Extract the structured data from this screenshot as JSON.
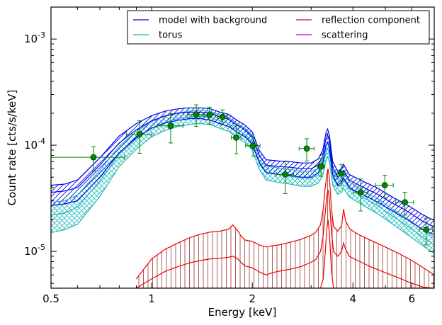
{
  "chart_data": {
    "type": "line",
    "xlabel": "Energy [keV]",
    "ylabel": "Count rate [cts/s/keV]",
    "xscale": "log",
    "yscale": "log",
    "xlim": [
      0.5,
      7.0
    ],
    "ylim": [
      4.5e-06,
      0.002
    ],
    "x_ticks": [
      {
        "value": 0.5,
        "label": "0.5"
      },
      {
        "value": 1,
        "label": "1"
      },
      {
        "value": 2,
        "label": "2"
      },
      {
        "value": 4,
        "label": "4"
      },
      {
        "value": 6,
        "label": "6"
      }
    ],
    "y_ticks": [
      {
        "value": 1e-05,
        "mant": "10",
        "exp": "-5"
      },
      {
        "value": 0.0001,
        "mant": "10",
        "exp": "-4"
      },
      {
        "value": 0.001,
        "mant": "10",
        "exp": "-3"
      }
    ],
    "legend_position": "top-right",
    "grid": false,
    "series": [
      {
        "name": "model with background",
        "color": "#0000ee",
        "hatch": "diagonal",
        "x": [
          0.5,
          0.55,
          0.6,
          0.7,
          0.8,
          0.9,
          1.0,
          1.1,
          1.2,
          1.3,
          1.4,
          1.5,
          1.6,
          1.7,
          1.8,
          1.9,
          2.0,
          2.1,
          2.2,
          2.4,
          2.6,
          2.8,
          3.0,
          3.15,
          3.25,
          3.32,
          3.36,
          3.4,
          3.48,
          3.6,
          3.7,
          3.75,
          3.8,
          3.9,
          4.0,
          4.3,
          4.7,
          5.2,
          5.8,
          6.5,
          7.0
        ],
        "y": [
          3.6e-05,
          3.7e-05,
          4e-05,
          6.5e-05,
          0.000105,
          0.00014,
          0.00017,
          0.00019,
          0.0002,
          0.000205,
          0.000205,
          0.0002,
          0.000185,
          0.000175,
          0.000155,
          0.00014,
          0.00012,
          8e-05,
          6.5e-05,
          6.3e-05,
          6.2e-05,
          6e-05,
          6e-05,
          6.5e-05,
          8e-05,
          0.000115,
          0.000125,
          0.00011,
          6.2e-05,
          5e-05,
          5.3e-05,
          5.8e-05,
          5.4e-05,
          4.7e-05,
          4.5e-05,
          4e-05,
          3.5e-05,
          2.9e-05,
          2.4e-05,
          1.9e-05,
          1.7e-05
        ],
        "y_low": [
          2.7e-05,
          2.8e-05,
          3e-05,
          5e-05,
          8.5e-05,
          0.000118,
          0.000145,
          0.000162,
          0.000172,
          0.000178,
          0.000178,
          0.000172,
          0.00016,
          0.00015,
          0.000133,
          0.00012,
          0.000102,
          6.8e-05,
          5.5e-05,
          5.3e-05,
          5.2e-05,
          5e-05,
          5e-05,
          5.5e-05,
          6.8e-05,
          9.8e-05,
          0.000107,
          9.4e-05,
          5.3e-05,
          4.2e-05,
          4.5e-05,
          4.9e-05,
          4.6e-05,
          4e-05,
          3.8e-05,
          3.4e-05,
          2.95e-05,
          2.45e-05,
          2e-05,
          1.6e-05,
          1.43e-05
        ],
        "y_high": [
          4.2e-05,
          4.3e-05,
          4.7e-05,
          7.6e-05,
          0.000122,
          0.00016,
          0.00019,
          0.00021,
          0.00022,
          0.000225,
          0.000225,
          0.00022,
          0.000205,
          0.000195,
          0.000172,
          0.000155,
          0.000133,
          8.9e-05,
          7.3e-05,
          7.1e-05,
          7e-05,
          6.8e-05,
          6.8e-05,
          7.4e-05,
          9e-05,
          0.00013,
          0.000142,
          0.000125,
          7e-05,
          5.7e-05,
          6e-05,
          6.6e-05,
          6.1e-05,
          5.3e-05,
          5.1e-05,
          4.55e-05,
          4e-05,
          3.3e-05,
          2.75e-05,
          2.2e-05,
          1.95e-05
        ]
      },
      {
        "name": "torus",
        "color": "#22bbbb",
        "hatch": "cross",
        "x": [
          0.5,
          0.55,
          0.6,
          0.7,
          0.8,
          0.9,
          1.0,
          1.1,
          1.2,
          1.3,
          1.4,
          1.5,
          1.6,
          1.7,
          1.8,
          1.9,
          2.0,
          2.1,
          2.2,
          2.4,
          2.6,
          2.8,
          3.0,
          3.15,
          3.25,
          3.32,
          3.36,
          3.4,
          3.48,
          3.6,
          3.7,
          3.75,
          3.8,
          3.9,
          4.0,
          4.3,
          4.7,
          5.2,
          5.8,
          6.5,
          7.0
        ],
        "y": [
          2.2e-05,
          2.3e-05,
          2.6e-05,
          4.6e-05,
          8.2e-05,
          0.000115,
          0.000145,
          0.000165,
          0.000178,
          0.000185,
          0.000187,
          0.000183,
          0.00017,
          0.00016,
          0.00014,
          0.000127,
          0.000108,
          7e-05,
          5.6e-05,
          5.3e-05,
          5.1e-05,
          4.9e-05,
          4.9e-05,
          5.2e-05,
          6.2e-05,
          8.5e-05,
          9.3e-05,
          8.4e-05,
          5e-05,
          4.1e-05,
          4.3e-05,
          4.7e-05,
          4.4e-05,
          3.9e-05,
          3.7e-05,
          3.2e-05,
          2.75e-05,
          2.2e-05,
          1.75e-05,
          1.35e-05,
          1.15e-05
        ],
        "y_low": [
          1.5e-05,
          1.6e-05,
          1.8e-05,
          3.3e-05,
          6.3e-05,
          9.2e-05,
          0.00012,
          0.000138,
          0.00015,
          0.000157,
          0.00016,
          0.000156,
          0.000144,
          0.000135,
          0.000118,
          0.000106,
          9e-05,
          5.9e-05,
          4.7e-05,
          4.45e-05,
          4.3e-05,
          4.1e-05,
          4.1e-05,
          4.4e-05,
          5.2e-05,
          7.1e-05,
          7.8e-05,
          7e-05,
          4.2e-05,
          3.45e-05,
          3.6e-05,
          3.95e-05,
          3.7e-05,
          3.25e-05,
          3.1e-05,
          2.7e-05,
          2.3e-05,
          1.85e-05,
          1.45e-05,
          1.12e-05,
          9.5e-06
        ],
        "y_high": [
          2.9e-05,
          3e-05,
          3.4e-05,
          5.8e-05,
          9.8e-05,
          0.000135,
          0.000167,
          0.000188,
          0.000202,
          0.00021,
          0.000212,
          0.000208,
          0.000193,
          0.000182,
          0.00016,
          0.000145,
          0.000123,
          8e-05,
          6.4e-05,
          6.1e-05,
          5.9e-05,
          5.7e-05,
          5.7e-05,
          6e-05,
          7.2e-05,
          9.8e-05,
          0.000107,
          9.7e-05,
          5.8e-05,
          4.75e-05,
          5e-05,
          5.45e-05,
          5.1e-05,
          4.5e-05,
          4.3e-05,
          3.7e-05,
          3.2e-05,
          2.55e-05,
          2.05e-05,
          1.58e-05,
          1.35e-05
        ]
      },
      {
        "name": "reflection component",
        "color": "#ee0000",
        "hatch": "vertical",
        "x": [
          0.9,
          1.0,
          1.1,
          1.2,
          1.3,
          1.4,
          1.5,
          1.6,
          1.7,
          1.75,
          1.8,
          1.85,
          1.9,
          2.0,
          2.1,
          2.2,
          2.3,
          2.4,
          2.6,
          2.8,
          3.0,
          3.1,
          3.2,
          3.26,
          3.3,
          3.34,
          3.37,
          3.4,
          3.45,
          3.5,
          3.6,
          3.7,
          3.75,
          3.8,
          3.9,
          4.0,
          4.2,
          4.5,
          5.0,
          5.5,
          6.0,
          6.5,
          7.0
        ],
        "y": [
          4.5e-06,
          5.5e-06,
          6.5e-06,
          7.2e-06,
          7.8e-06,
          8.2e-06,
          8.5e-06,
          8.6e-06,
          8.8e-06,
          9e-06,
          8.6e-06,
          7.9e-06,
          7.3e-06,
          7e-06,
          6.4e-06,
          6e-06,
          6.3e-06,
          6.5e-06,
          6.8e-06,
          7.2e-06,
          7.9e-06,
          8.4e-06,
          1e-05,
          1.4e-05,
          2.2e-05,
          3.3e-05,
          3.8e-05,
          3.1e-05,
          1.5e-05,
          1e-05,
          9e-06,
          1e-05,
          1.2e-05,
          1.05e-05,
          9e-06,
          8.6e-06,
          8e-06,
          7.2e-06,
          6.3e-06,
          5.6e-06,
          5e-06,
          4.6e-06,
          4.5e-06
        ],
        "y_low": [
          4.5e-06,
          4.5e-06,
          4.5e-06,
          4.5e-06,
          4.5e-06,
          4.5e-06,
          4.5e-06,
          4.5e-06,
          4.5e-06,
          4.5e-06,
          4.5e-06,
          4.5e-06,
          4.5e-06,
          4.5e-06,
          4.5e-06,
          4.5e-06,
          4.5e-06,
          4.5e-06,
          4.5e-06,
          4.5e-06,
          4.5e-06,
          4.5e-06,
          4.5e-06,
          5.5e-06,
          9e-06,
          1.6e-05,
          2e-05,
          1.5e-05,
          6.5e-06,
          4.5e-06,
          4.5e-06,
          4.5e-06,
          4.5e-06,
          4.5e-06,
          4.5e-06,
          4.5e-06,
          4.5e-06,
          4.5e-06,
          4.5e-06,
          4.5e-06,
          4.5e-06,
          4.5e-06,
          4.5e-06
        ],
        "y_high": [
          5.5e-06,
          8.5e-06,
          1.05e-05,
          1.2e-05,
          1.35e-05,
          1.45e-05,
          1.52e-05,
          1.55e-05,
          1.62e-05,
          1.78e-05,
          1.6e-05,
          1.4e-05,
          1.28e-05,
          1.24e-05,
          1.15e-05,
          1.1e-05,
          1.13e-05,
          1.15e-05,
          1.22e-05,
          1.3e-05,
          1.42e-05,
          1.52e-05,
          1.78e-05,
          2.5e-05,
          3.8e-05,
          5.3e-05,
          6e-05,
          5e-05,
          2.5e-05,
          1.72e-05,
          1.55e-05,
          1.75e-05,
          2.5e-05,
          1.95e-05,
          1.65e-05,
          1.55e-05,
          1.42e-05,
          1.28e-05,
          1.1e-05,
          9.5e-06,
          8.2e-06,
          7e-06,
          6e-06
        ]
      },
      {
        "name": "scattering",
        "color": "#bb00bb",
        "hatch": "none",
        "x": [],
        "y": []
      }
    ],
    "data_points": {
      "color": "#008800",
      "points": [
        {
          "x": 0.67,
          "y": 7.7e-05,
          "xerr": [
            0.17,
            0.16
          ],
          "yerr": [
            2e-05,
            2e-05
          ]
        },
        {
          "x": 0.92,
          "y": 0.000127,
          "xerr": [
            0.08,
            0.08
          ],
          "yerr": [
            4.3e-05,
            4.3e-05
          ]
        },
        {
          "x": 1.14,
          "y": 0.000152,
          "xerr": [
            0.1,
            0.1
          ],
          "yerr": [
            4.7e-05,
            4.7e-05
          ]
        },
        {
          "x": 1.36,
          "y": 0.000195,
          "xerr": [
            0.08,
            0.08
          ],
          "yerr": [
            4.5e-05,
            4.5e-05
          ]
        },
        {
          "x": 1.49,
          "y": 0.000193,
          "xerr": [
            0.06,
            0.06
          ],
          "yerr": [
            3.5e-05,
            3.5e-05
          ]
        },
        {
          "x": 1.63,
          "y": 0.000185,
          "xerr": [
            0.06,
            0.06
          ],
          "yerr": [
            3e-05,
            3e-05
          ]
        },
        {
          "x": 1.79,
          "y": 0.000118,
          "xerr": [
            0.06,
            0.06
          ],
          "yerr": [
            3.5e-05,
            3.5e-05
          ]
        },
        {
          "x": 2.01,
          "y": 9.9e-05,
          "xerr": [
            0.1,
            0.1
          ],
          "yerr": [
            2e-05,
            2e-05
          ]
        },
        {
          "x": 2.51,
          "y": 5.3e-05,
          "xerr": [
            0.15,
            0.15
          ],
          "yerr": [
            1.8e-05,
            1.8e-05
          ]
        },
        {
          "x": 2.91,
          "y": 9.3e-05,
          "xerr": [
            0.15,
            0.15
          ],
          "yerr": [
            2.2e-05,
            2.2e-05
          ]
        },
        {
          "x": 3.21,
          "y": 6.3e-05,
          "xerr": [
            0.08,
            0.08
          ],
          "yerr": [
            1.2e-05,
            1.2e-05
          ]
        },
        {
          "x": 3.69,
          "y": 5.4e-05,
          "xerr": [
            0.1,
            0.1
          ],
          "yerr": [
            1.2e-05,
            1.2e-05
          ]
        },
        {
          "x": 4.22,
          "y": 3.6e-05,
          "xerr": [
            0.2,
            0.2
          ],
          "yerr": [
            1.2e-05,
            1.2e-05
          ]
        },
        {
          "x": 4.98,
          "y": 4.2e-05,
          "xerr": [
            0.3,
            0.3
          ],
          "yerr": [
            1e-05,
            1e-05
          ]
        },
        {
          "x": 5.72,
          "y": 2.9e-05,
          "xerr": [
            0.35,
            0.35
          ],
          "yerr": [
            7e-06,
            7e-06
          ]
        },
        {
          "x": 6.62,
          "y": 1.6e-05,
          "xerr": [
            0.3,
            0.3
          ],
          "yerr": [
            4.5e-06,
            4.5e-06
          ]
        }
      ]
    }
  }
}
